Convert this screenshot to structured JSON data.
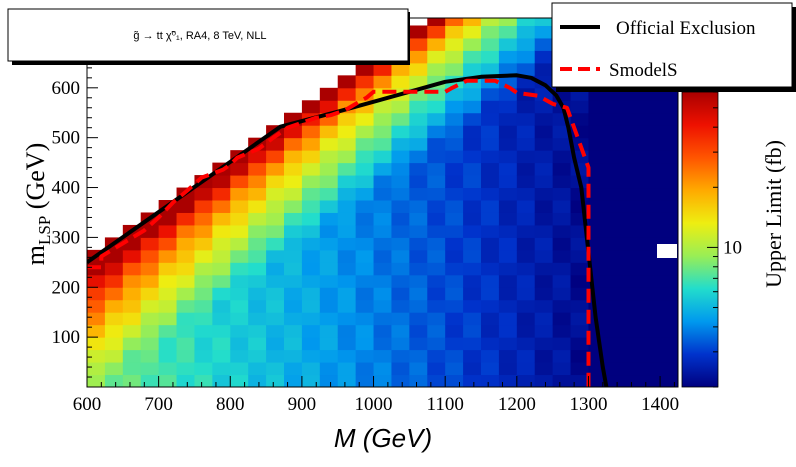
{
  "chart_data": {
    "type": "heatmap",
    "title": "g̃ → tt χ̃⁰₁, RA4, 8 TeV, NLL",
    "xlabel": "M (GeV)",
    "ylabel": "m_LSP (GeV)",
    "ylabel_main": "m",
    "ylabel_sub": "LSP",
    "ylabel_unit": " (GeV)",
    "zlabel": "Upper Limit (fb)",
    "xlim": [
      600,
      1425
    ],
    "ylim": [
      0,
      740
    ],
    "zscale": "log",
    "zlim": [
      2,
      60
    ],
    "xticks": [
      "600",
      "700",
      "800",
      "900",
      "1000",
      "1100",
      "1200",
      "1300",
      "1400"
    ],
    "yticks": [
      "100",
      "200",
      "300",
      "400",
      "500",
      "600"
    ],
    "zticks": [
      "10"
    ],
    "grid": false,
    "legend_position": "top-right",
    "series": [
      {
        "name": "Official Exclusion",
        "color": "#000000",
        "style": "solid",
        "x": [
          600,
          870,
          950,
          1050,
          1100,
          1150,
          1200,
          1220,
          1240,
          1255,
          1265,
          1272,
          1280,
          1290,
          1300,
          1310,
          1320,
          1325
        ],
        "y": [
          250,
          522,
          552,
          592,
          612,
          622,
          625,
          620,
          605,
          585,
          560,
          520,
          460,
          400,
          270,
          140,
          40,
          0
        ]
      },
      {
        "name": "SmodelS",
        "color": "#ff0000",
        "style": "dashed",
        "x": [
          600,
          620,
          620,
          650,
          680,
          700,
          720,
          740,
          760,
          790,
          800,
          810,
          840,
          860,
          880,
          900,
          920,
          940,
          960,
          980,
          990,
          1000,
          1050,
          1100,
          1110,
          1130,
          1150,
          1170,
          1190,
          1200,
          1230,
          1250,
          1270,
          1300,
          1300
        ],
        "y": [
          240,
          240,
          262,
          288,
          314,
          340,
          370,
          394,
          420,
          436,
          446,
          460,
          478,
          500,
          520,
          530,
          540,
          545,
          555,
          572,
          580,
          592,
          592,
          592,
          600,
          614,
          614,
          614,
          600,
          590,
          584,
          568,
          560,
          440,
          0
        ]
      }
    ],
    "legend": [
      "Official Exclusion",
      "SmodelS"
    ],
    "colorbar_colors": [
      "#00007f",
      "#0033cc",
      "#0099ee",
      "#22ddcc",
      "#99ee55",
      "#eeee11",
      "#ffaa00",
      "#ff5500",
      "#ee1100",
      "#aa0000"
    ]
  }
}
